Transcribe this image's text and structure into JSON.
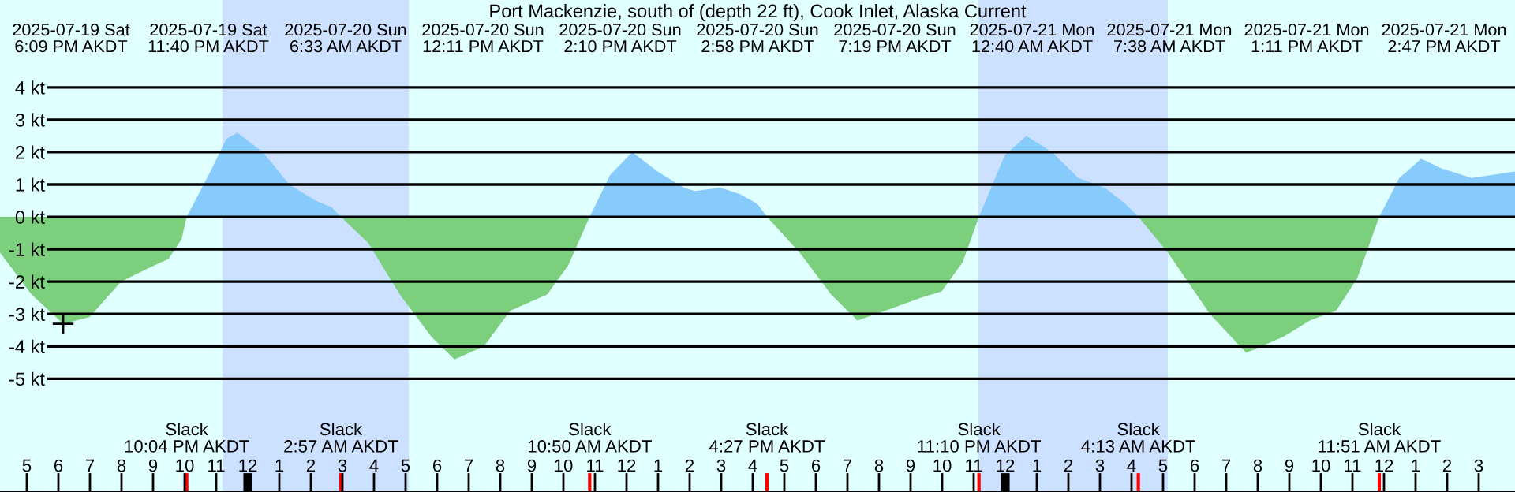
{
  "chart_data": {
    "type": "area",
    "title": "Port Mackenzie, south of (depth 22 ft), Cook Inlet, Alaska Current",
    "x": [
      "2025-07-19T16:09",
      "2025-07-19T17:09",
      "2025-07-19T18:09",
      "2025-07-19T18:59",
      "2025-07-19T19:59",
      "2025-07-19T20:49",
      "2025-07-19T21:29",
      "2025-07-19T21:54",
      "2025-07-19T22:04",
      "2025-07-19T22:49",
      "2025-07-19T23:19",
      "2025-07-19T23:40",
      "2025-07-20T00:29",
      "2025-07-20T01:19",
      "2025-07-20T02:09",
      "2025-07-20T02:39",
      "2025-07-20T02:57",
      "2025-07-20T03:49",
      "2025-07-20T04:49",
      "2025-07-20T05:49",
      "2025-07-20T06:33",
      "2025-07-20T07:29",
      "2025-07-20T08:19",
      "2025-07-20T09:29",
      "2025-07-20T10:09",
      "2025-07-20T10:50",
      "2025-07-20T11:29",
      "2025-07-20T12:11",
      "2025-07-20T12:59",
      "2025-07-20T13:49",
      "2025-07-20T14:10",
      "2025-07-20T14:58",
      "2025-07-20T15:36",
      "2025-07-20T16:09",
      "2025-07-20T16:27",
      "2025-07-20T17:29",
      "2025-07-20T18:29",
      "2025-07-20T19:19",
      "2025-07-20T20:29",
      "2025-07-20T21:19",
      "2025-07-20T21:59",
      "2025-07-20T22:39",
      "2025-07-20T23:10",
      "2025-07-20T23:59",
      "2025-07-21T00:40",
      "2025-07-21T01:29",
      "2025-07-21T02:19",
      "2025-07-21T03:09",
      "2025-07-21T03:49",
      "2025-07-21T04:13",
      "2025-07-21T05:09",
      "2025-07-21T06:29",
      "2025-07-21T07:38",
      "2025-07-21T08:49",
      "2025-07-21T09:39",
      "2025-07-21T10:29",
      "2025-07-21T11:09",
      "2025-07-21T11:51",
      "2025-07-21T12:29",
      "2025-07-21T13:11",
      "2025-07-21T13:49",
      "2025-07-21T14:47",
      "2025-07-21T16:09"
    ],
    "series": [
      {
        "color": "#87cbfd",
        "values": [
          null,
          null,
          null,
          null,
          null,
          null,
          null,
          null,
          0,
          1.4,
          2.4,
          2.6,
          2.0,
          1.0,
          0.5,
          0.3,
          0,
          null,
          null,
          null,
          null,
          null,
          null,
          null,
          null,
          0,
          1.3,
          2.0,
          1.4,
          0.9,
          0.8,
          0.9,
          0.7,
          0.4,
          0,
          null,
          null,
          null,
          null,
          null,
          null,
          null,
          0,
          1.9,
          2.5,
          2.0,
          1.2,
          0.9,
          0.4,
          0,
          null,
          null,
          null,
          null,
          null,
          null,
          null,
          0,
          1.2,
          1.8,
          1.5,
          1.2,
          1.4
        ]
      },
      {
        "color": "#7ccf7d",
        "values": [
          -1.1,
          -2.4,
          -3.3,
          -3.1,
          -2.0,
          -1.6,
          -1.3,
          -0.7,
          0,
          null,
          null,
          null,
          null,
          null,
          null,
          null,
          0,
          -0.8,
          -2.4,
          -3.7,
          -4.4,
          -4.0,
          -2.9,
          -2.4,
          -1.5,
          0,
          null,
          null,
          null,
          null,
          null,
          null,
          null,
          null,
          0,
          -1.1,
          -2.4,
          -3.2,
          -2.8,
          -2.5,
          -2.3,
          -1.4,
          0,
          null,
          null,
          null,
          null,
          null,
          null,
          0,
          -1.1,
          -3.0,
          -4.2,
          -3.7,
          -3.2,
          -2.9,
          -1.9,
          0,
          null,
          null,
          null,
          null,
          null
        ]
      },
      {
        "type": "scatter",
        "color": "#000000",
        "marker": "cross",
        "x": [
          "2025-07-19T18:09"
        ],
        "values": [
          -3.3
        ]
      }
    ],
    "xlim": [
      "2025-07-19T16:09",
      "2025-07-21T16:09"
    ],
    "ylim": [
      -8.5,
      6.7
    ],
    "xticks": [
      {
        "value": "2025-07-19T17:00",
        "label": "5"
      },
      {
        "value": "2025-07-19T18:00",
        "label": "6"
      },
      {
        "value": "2025-07-19T19:00",
        "label": "7"
      },
      {
        "value": "2025-07-19T20:00",
        "label": "8"
      },
      {
        "value": "2025-07-19T21:00",
        "label": "9"
      },
      {
        "value": "2025-07-19T22:00",
        "label": "10"
      },
      {
        "value": "2025-07-19T23:00",
        "label": "11"
      },
      {
        "value": "2025-07-20T00:00",
        "label": "12"
      },
      {
        "value": "2025-07-20T01:00",
        "label": "1"
      },
      {
        "value": "2025-07-20T02:00",
        "label": "2"
      },
      {
        "value": "2025-07-20T03:00",
        "label": "3"
      },
      {
        "value": "2025-07-20T04:00",
        "label": "4"
      },
      {
        "value": "2025-07-20T05:00",
        "label": "5"
      },
      {
        "value": "2025-07-20T06:00",
        "label": "6"
      },
      {
        "value": "2025-07-20T07:00",
        "label": "7"
      },
      {
        "value": "2025-07-20T08:00",
        "label": "8"
      },
      {
        "value": "2025-07-20T09:00",
        "label": "9"
      },
      {
        "value": "2025-07-20T10:00",
        "label": "10"
      },
      {
        "value": "2025-07-20T11:00",
        "label": "11"
      },
      {
        "value": "2025-07-20T12:00",
        "label": "12"
      },
      {
        "value": "2025-07-20T13:00",
        "label": "1"
      },
      {
        "value": "2025-07-20T14:00",
        "label": "2"
      },
      {
        "value": "2025-07-20T15:00",
        "label": "3"
      },
      {
        "value": "2025-07-20T16:00",
        "label": "4"
      },
      {
        "value": "2025-07-20T17:00",
        "label": "5"
      },
      {
        "value": "2025-07-20T18:00",
        "label": "6"
      },
      {
        "value": "2025-07-20T19:00",
        "label": "7"
      },
      {
        "value": "2025-07-20T20:00",
        "label": "8"
      },
      {
        "value": "2025-07-20T21:00",
        "label": "9"
      },
      {
        "value": "2025-07-20T22:00",
        "label": "10"
      },
      {
        "value": "2025-07-20T23:00",
        "label": "11"
      },
      {
        "value": "2025-07-21T00:00",
        "label": "12"
      },
      {
        "value": "2025-07-21T01:00",
        "label": "1"
      },
      {
        "value": "2025-07-21T02:00",
        "label": "2"
      },
      {
        "value": "2025-07-21T03:00",
        "label": "3"
      },
      {
        "value": "2025-07-21T04:00",
        "label": "4"
      },
      {
        "value": "2025-07-21T05:00",
        "label": "5"
      },
      {
        "value": "2025-07-21T06:00",
        "label": "6"
      },
      {
        "value": "2025-07-21T07:00",
        "label": "7"
      },
      {
        "value": "2025-07-21T08:00",
        "label": "8"
      },
      {
        "value": "2025-07-21T09:00",
        "label": "9"
      },
      {
        "value": "2025-07-21T10:00",
        "label": "10"
      },
      {
        "value": "2025-07-21T11:00",
        "label": "11"
      },
      {
        "value": "2025-07-21T12:00",
        "label": "12"
      },
      {
        "value": "2025-07-21T13:00",
        "label": "1"
      },
      {
        "value": "2025-07-21T14:00",
        "label": "2"
      },
      {
        "value": "2025-07-21T15:00",
        "label": "3"
      }
    ],
    "x2lim": [
      "2025-07-19T16:09",
      "2025-07-21T16:09"
    ],
    "x2ticks": [
      {
        "value": "2025-07-19T22:04",
        "label": "Slack\n10:04 PM AKDT"
      },
      {
        "value": "2025-07-20T02:57",
        "label": "Slack\n2:57 AM AKDT"
      },
      {
        "value": "2025-07-20T10:50",
        "label": "Slack\n10:50 AM AKDT"
      },
      {
        "value": "2025-07-20T16:27",
        "label": "Slack\n4:27 PM AKDT"
      },
      {
        "value": "2025-07-20T23:10",
        "label": "Slack\n11:10 PM AKDT"
      },
      {
        "value": "2025-07-21T04:13",
        "label": "Slack\n4:13 AM AKDT"
      },
      {
        "value": "2025-07-21T11:51",
        "label": "Slack\n11:51 AM AKDT"
      }
    ],
    "yticks": [
      {
        "value": 4,
        "label": "4 kt"
      },
      {
        "value": 3,
        "label": "3 kt"
      },
      {
        "value": 2,
        "label": "2 kt"
      },
      {
        "value": 1,
        "label": "1 kt"
      },
      {
        "value": 0,
        "label": "0 kt"
      },
      {
        "value": -1,
        "label": "-1 kt"
      },
      {
        "value": -2,
        "label": "-2 kt"
      },
      {
        "value": -3,
        "label": "-3 kt"
      },
      {
        "value": -4,
        "label": "-4 kt"
      },
      {
        "value": -5,
        "label": "-5 kt"
      }
    ],
    "grid": "y",
    "bands": [
      {
        "axis": "x",
        "from": "2025-07-19T23:12",
        "to": "2025-07-20T05:06",
        "color": "#cce0ff"
      },
      {
        "axis": "x",
        "from": "2025-07-20T23:09",
        "to": "2025-07-21T05:09",
        "color": "#cce0ff"
      }
    ],
    "annotations": [
      "2025-07-19 Sat\n6:09 PM AKDT",
      "2025-07-19 Sat\n11:40 PM AKDT",
      "2025-07-20 Sun\n6:33 AM AKDT",
      "2025-07-20 Sun\n12:11 PM AKDT",
      "2025-07-20 Sun\n2:10 PM AKDT",
      "2025-07-20 Sun\n2:58 PM AKDT",
      "2025-07-20 Sun\n7:19 PM AKDT",
      "2025-07-21 Mon\n12:40 AM AKDT",
      "2025-07-21 Mon\n7:38 AM AKDT",
      "2025-07-21 Mon\n1:11 PM AKDT",
      "2025-07-21 Mon\n2:47 PM AKDT"
    ]
  }
}
